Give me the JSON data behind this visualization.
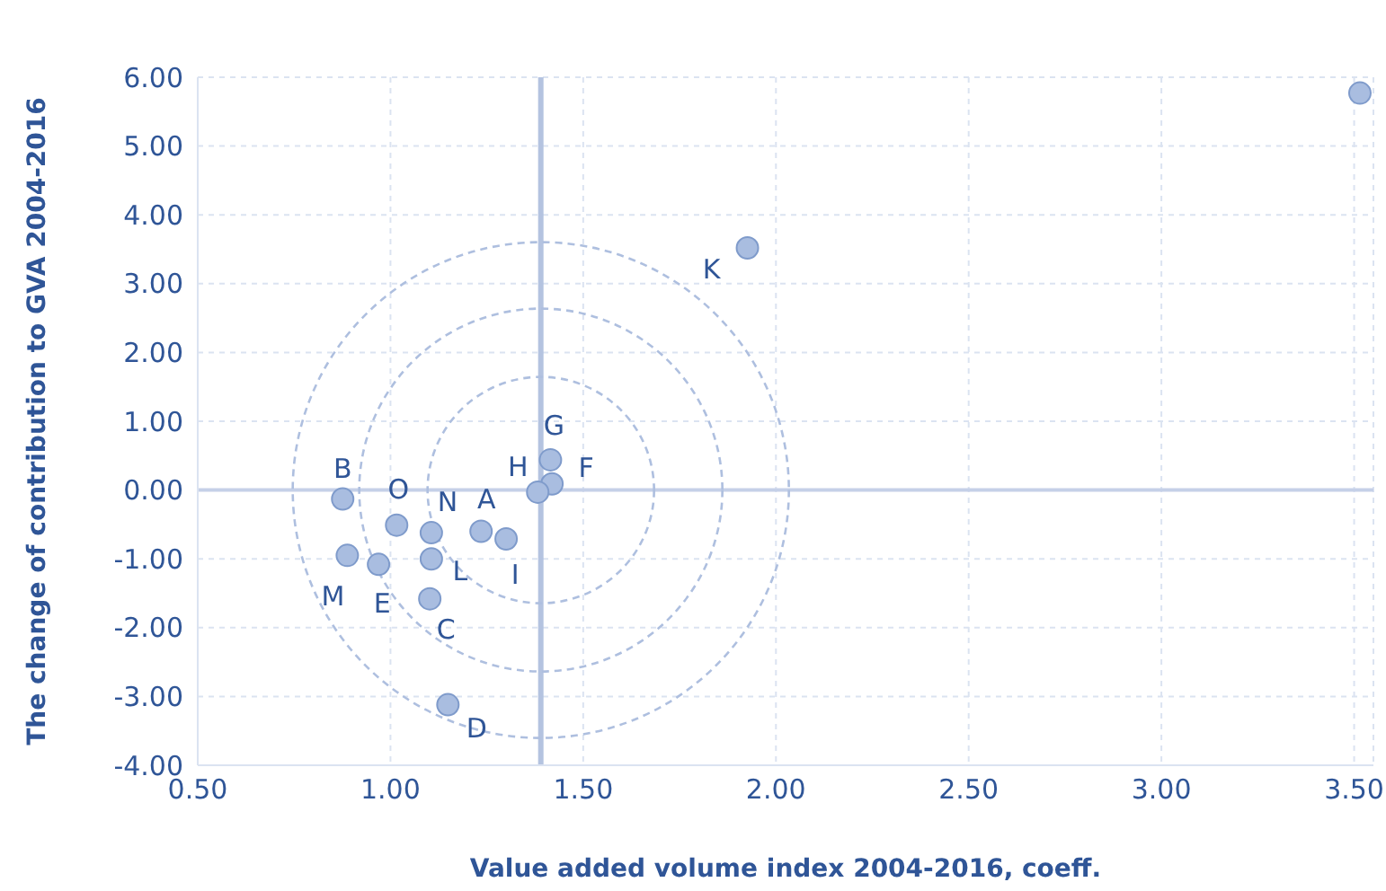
{
  "chart_data": {
    "type": "scatter",
    "xlabel": "Value added volume index 2004-2016, coeff.",
    "ylabel": "The change of contribution to GVA 2004-2016",
    "series": [
      {
        "color": "#a9bde0",
        "x": [
          1.235,
          0.876,
          1.102,
          1.149,
          0.969,
          1.419,
          1.415,
          1.382,
          1.3,
          1.926,
          1.106,
          0.888,
          1.106,
          1.016,
          3.515
        ],
        "values": [
          -0.6,
          -0.13,
          -1.58,
          -3.12,
          -1.08,
          0.09,
          0.44,
          -0.03,
          -0.71,
          3.52,
          -1.0,
          -0.95,
          -0.62,
          -0.51,
          5.77
        ]
      }
    ],
    "annotations": [
      {
        "text": "A",
        "x": 1.235,
        "y": -0.6
      },
      {
        "text": "B",
        "x": 0.876,
        "y": -0.13
      },
      {
        "text": "C",
        "x": 1.102,
        "y": -1.58
      },
      {
        "text": "D",
        "x": 1.149,
        "y": -3.12
      },
      {
        "text": "E",
        "x": 0.969,
        "y": -1.08
      },
      {
        "text": "F",
        "x": 1.419,
        "y": 0.09
      },
      {
        "text": "G",
        "x": 1.415,
        "y": 0.44
      },
      {
        "text": "H",
        "x": 1.382,
        "y": -0.03
      },
      {
        "text": "I",
        "x": 1.3,
        "y": -0.71
      },
      {
        "text": "K",
        "x": 1.926,
        "y": 3.52
      },
      {
        "text": "L",
        "x": 1.106,
        "y": -1.0
      },
      {
        "text": "M",
        "x": 0.888,
        "y": -0.95
      },
      {
        "text": "N",
        "x": 1.106,
        "y": -0.62
      },
      {
        "text": "O",
        "x": 1.016,
        "y": -0.51
      }
    ],
    "ref_lines": [
      {
        "axis": "x",
        "value": 1.39,
        "color": "#b4c3e0"
      },
      {
        "axis": "y",
        "value": 0,
        "color": "#c5d0e8"
      }
    ],
    "xlim": [
      0.5,
      3.55
    ],
    "xticks": [
      {
        "value": 0.5,
        "label": "0.50"
      },
      {
        "value": 1,
        "label": "1.00"
      },
      {
        "value": 1.5,
        "label": "1.50"
      },
      {
        "value": 2,
        "label": "2.00"
      },
      {
        "value": 2.5,
        "label": "2.50"
      },
      {
        "value": 3,
        "label": "3.00"
      },
      {
        "value": 3.5,
        "label": "3.50"
      }
    ],
    "ylim": [
      -4,
      6
    ],
    "yticks": [
      {
        "value": -4,
        "label": "-4.00"
      },
      {
        "value": -3,
        "label": "-3.00"
      },
      {
        "value": -2,
        "label": "-2.00"
      },
      {
        "value": -1,
        "label": "-1.00"
      },
      {
        "value": 0,
        "label": "0.00"
      },
      {
        "value": 1,
        "label": "1.00"
      },
      {
        "value": 2,
        "label": "2.00"
      },
      {
        "value": 3,
        "label": "3.00"
      },
      {
        "value": 4,
        "label": "4.00"
      },
      {
        "value": 5,
        "label": "5.00"
      },
      {
        "value": 6,
        "label": "6.00"
      }
    ],
    "grid": true,
    "marker": "circle",
    "legend": false
  }
}
